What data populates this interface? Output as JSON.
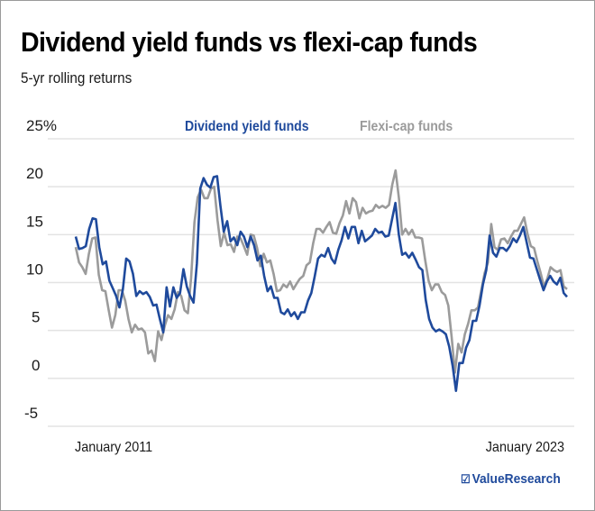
{
  "header": {
    "title": "Dividend yield funds vs flexi-cap funds",
    "subtitle": "5-yr rolling returns"
  },
  "branding": {
    "logo_icon": "checkbox-icon",
    "logo_glyph": "☑",
    "logo_text": "ValueResearch",
    "color": "#1f4a9c"
  },
  "chart_data": {
    "type": "line",
    "title": "Dividend yield funds vs flexi-cap funds",
    "subtitle": "5-yr rolling returns",
    "xlabel": "",
    "ylabel": "%",
    "ylim": [
      -5,
      25
    ],
    "yticks": [
      25,
      20,
      15,
      10,
      5,
      0,
      -5
    ],
    "ytick_labels": [
      "25%",
      "20",
      "15",
      "10",
      "5",
      "0",
      "-5"
    ],
    "xtick_labels": [
      "January 2011",
      "January 2023"
    ],
    "grid": true,
    "legend": {
      "placement": "top-center",
      "entries": [
        "Dividend yield funds",
        "Flexi-cap funds"
      ]
    },
    "series": [
      {
        "name": "Dividend yield funds",
        "color": "#1f4a9c",
        "values": [
          14.8,
          13.5,
          13.6,
          13.8,
          15.6,
          16.7,
          16.6,
          13.7,
          11.9,
          12.2,
          10.2,
          9.4,
          8.6,
          7.4,
          9.3,
          12.5,
          12.2,
          10.9,
          8.6,
          9.1,
          8.8,
          9.0,
          8.5,
          7.6,
          7.7,
          6.2,
          4.8,
          9.5,
          7.5,
          9.5,
          8.4,
          8.9,
          11.4,
          9.6,
          8.6,
          7.9,
          12.0,
          19.8,
          20.9,
          20.2,
          19.9,
          21.0,
          21.1,
          18.0,
          15.3,
          16.4,
          14.3,
          14.7,
          13.9,
          15.3,
          14.8,
          13.7,
          14.8,
          13.9,
          12.3,
          12.8,
          10.7,
          9.1,
          9.6,
          8.4,
          8.4,
          6.9,
          6.7,
          7.2,
          6.5,
          6.9,
          6.2,
          6.9,
          6.9,
          8.1,
          8.9,
          10.6,
          12.5,
          12.9,
          12.7,
          13.6,
          12.5,
          12.0,
          13.4,
          14.4,
          15.8,
          14.6,
          15.8,
          15.8,
          14.1,
          15.4,
          14.3,
          14.6,
          14.9,
          15.6,
          15.2,
          15.3,
          14.8,
          14.9,
          16.6,
          18.3,
          15.0,
          12.9,
          13.1,
          12.6,
          13.1,
          12.4,
          11.6,
          11.3,
          8.2,
          6.2,
          5.3,
          4.9,
          5.1,
          4.9,
          4.6,
          3.3,
          1.3,
          -1.3,
          1.6,
          1.6,
          3.2,
          4.0,
          6.0,
          6.0,
          7.6,
          9.8,
          11.3,
          14.9,
          13.1,
          12.7,
          13.6,
          13.6,
          13.3,
          13.8,
          14.6,
          14.2,
          14.9,
          15.8,
          14.2,
          12.6,
          12.5,
          11.4,
          10.3,
          9.2,
          10.1,
          10.7,
          10.1,
          9.8,
          10.5,
          8.9,
          8.5
        ]
      },
      {
        "name": "Flexi-cap funds",
        "color": "#9b9b9b",
        "values": [
          13.7,
          12.1,
          11.6,
          10.9,
          13.0,
          14.6,
          14.7,
          10.8,
          9.2,
          9.1,
          7.1,
          5.3,
          6.6,
          9.2,
          9.2,
          8.1,
          6.2,
          4.8,
          5.6,
          5.1,
          5.2,
          4.8,
          2.6,
          2.9,
          1.8,
          4.9,
          4.0,
          5.5,
          6.6,
          6.2,
          7.2,
          9.0,
          8.6,
          7.1,
          6.8,
          10.5,
          16.3,
          18.9,
          19.7,
          18.8,
          18.8,
          19.8,
          20.0,
          16.5,
          13.8,
          15.2,
          13.9,
          14.0,
          13.2,
          14.8,
          14.6,
          13.8,
          12.9,
          15.0,
          14.9,
          13.6,
          11.7,
          13.0,
          12.1,
          12.3,
          10.9,
          9.1,
          9.2,
          9.8,
          9.5,
          10.1,
          9.3,
          9.9,
          10.4,
          10.7,
          11.8,
          12.1,
          14.1,
          15.6,
          15.6,
          15.2,
          15.8,
          16.3,
          15.2,
          15.1,
          16.2,
          17.0,
          18.5,
          17.2,
          18.8,
          18.4,
          16.7,
          17.8,
          17.2,
          17.4,
          17.5,
          18.1,
          17.8,
          18.0,
          17.8,
          18.1,
          20.2,
          21.7,
          18.8,
          15.0,
          15.6,
          15.0,
          15.5,
          14.7,
          14.7,
          14.6,
          12.3,
          10.2,
          9.2,
          9.8,
          9.8,
          9.0,
          8.7,
          7.6,
          4.3,
          0.6,
          3.6,
          2.7,
          4.6,
          5.7,
          7.1,
          7.1,
          7.4,
          9.2,
          11.0,
          12.1,
          16.1,
          13.7,
          13.4,
          14.5,
          14.6,
          14.1,
          14.8,
          15.4,
          15.4,
          16.1,
          16.8,
          15.1,
          13.8,
          13.6,
          12.2,
          11.0,
          9.6,
          10.4,
          11.6,
          11.3,
          11.1,
          11.3,
          9.6,
          9.3
        ]
      }
    ]
  }
}
